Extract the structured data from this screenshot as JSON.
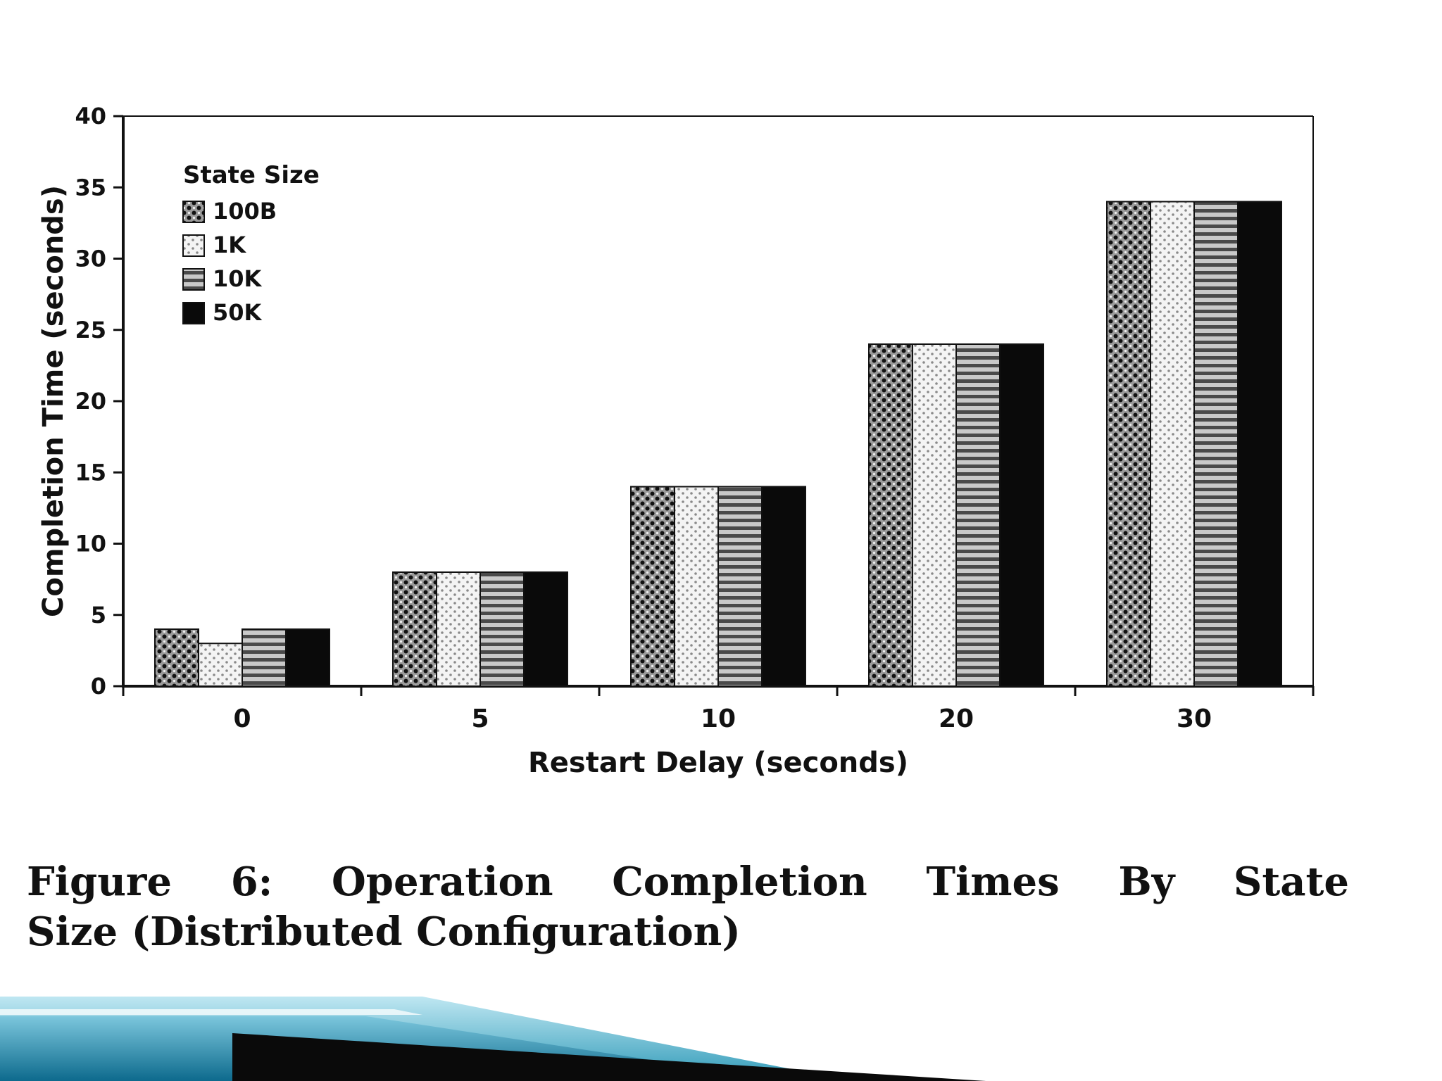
{
  "chart_data": {
    "type": "bar",
    "title": "",
    "categories": [
      "0",
      "5",
      "10",
      "20",
      "30"
    ],
    "series": [
      {
        "name": "100B",
        "pattern": "dots-dark",
        "values": [
          4,
          8,
          14,
          24,
          34
        ]
      },
      {
        "name": "1K",
        "pattern": "dots-light",
        "values": [
          3,
          8,
          14,
          24,
          34
        ]
      },
      {
        "name": "10K",
        "pattern": "hlines",
        "values": [
          4,
          8,
          14,
          24,
          34
        ]
      },
      {
        "name": "50K",
        "pattern": "solid-black",
        "values": [
          4,
          8,
          14,
          24,
          34
        ]
      }
    ],
    "xlabel": "Restart Delay (seconds)",
    "ylabel": "Completion Time (seconds)",
    "ylim": [
      0,
      40
    ],
    "ytick_step": 5,
    "legend_title": "State Size",
    "legend_position": "top-left-inside",
    "grid": "off"
  },
  "caption": {
    "line1": "Figure 6:  Operation Completion Times By State",
    "line2": "Size (Distributed Configuration)"
  },
  "footer": {
    "colors": {
      "teal_light": "#bfe7f2",
      "teal_mid": "#2f9ab8",
      "teal_dark": "#0d6a8d",
      "black": "#0a0a0a",
      "white_stripe": "#eef8fb"
    }
  }
}
